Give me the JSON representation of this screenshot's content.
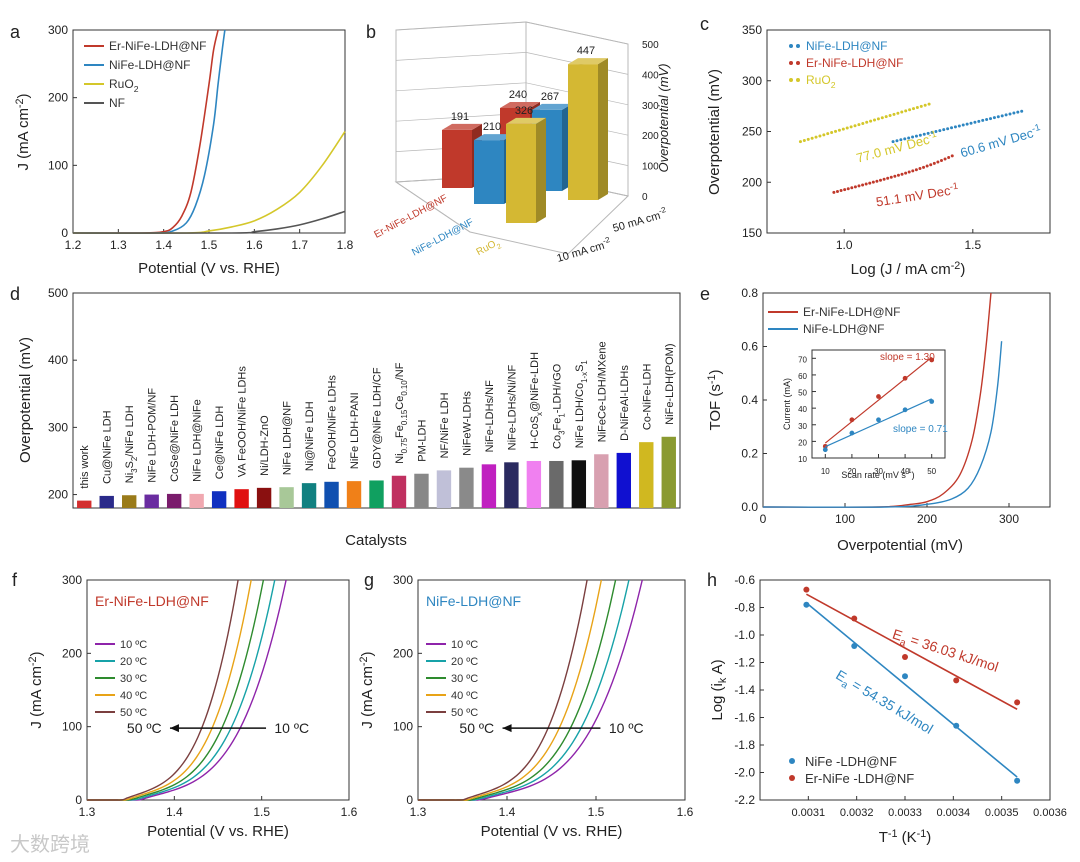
{
  "watermark": "大数跨境",
  "chart_data": [
    {
      "panel": "a",
      "type": "line",
      "xlabel": "Potential (V vs. RHE)",
      "ylabel": "J (mA cm-2)",
      "xlim": [
        1.2,
        1.8
      ],
      "ylim": [
        0,
        300
      ],
      "xticks": [
        1.2,
        1.3,
        1.4,
        1.5,
        1.6,
        1.7,
        1.8
      ],
      "yticks": [
        0,
        100,
        200,
        300
      ],
      "legend": "top-left",
      "series": [
        {
          "name": "Er-NiFe-LDH@NF",
          "color": "#c0392b",
          "x": [
            1.2,
            1.35,
            1.4,
            1.42,
            1.44,
            1.46,
            1.48,
            1.5,
            1.51,
            1.52
          ],
          "y": [
            0,
            0,
            2,
            8,
            25,
            60,
            130,
            220,
            270,
            300
          ]
        },
        {
          "name": "NiFe-LDH@NF",
          "color": "#2e86c1",
          "x": [
            1.2,
            1.38,
            1.42,
            1.45,
            1.47,
            1.49,
            1.51,
            1.52,
            1.53,
            1.535
          ],
          "y": [
            0,
            0,
            3,
            15,
            40,
            85,
            160,
            220,
            275,
            300
          ]
        },
        {
          "name": "RuO2",
          "color": "#d4c72a",
          "x": [
            1.2,
            1.45,
            1.5,
            1.55,
            1.6,
            1.65,
            1.7,
            1.75,
            1.8
          ],
          "y": [
            0,
            0,
            3,
            9,
            18,
            35,
            60,
            100,
            150
          ]
        },
        {
          "name": "NF",
          "color": "#555555",
          "x": [
            1.2,
            1.55,
            1.6,
            1.65,
            1.7,
            1.75,
            1.8
          ],
          "y": [
            0,
            0,
            2,
            6,
            12,
            21,
            32
          ]
        }
      ]
    },
    {
      "panel": "b",
      "type": "bar",
      "zlabel": "Overpotential (mV)",
      "zticks": [
        0,
        100,
        200,
        300,
        400,
        500
      ],
      "categories": [
        "Er-NiFe-LDH@NF",
        "NiFe-LDH@NF",
        "RuO2"
      ],
      "rows": [
        "10 mA cm-2",
        "50 mA cm-2"
      ],
      "series": [
        {
          "name": "10 mA cm-2",
          "values": [
            191,
            210,
            326
          ]
        },
        {
          "name": "50 mA cm-2",
          "values": [
            240,
            267,
            447
          ]
        }
      ],
      "colors": [
        "#c0392b",
        "#2e86c1",
        "#d4b833"
      ]
    },
    {
      "panel": "c",
      "type": "scatter",
      "xlabel": "Log (J / mA cm-2)",
      "ylabel": "Overpotential (mV)",
      "xlim": [
        0.7,
        1.8
      ],
      "ylim": [
        150,
        350
      ],
      "xticks": [
        1.0,
        1.5
      ],
      "yticks": [
        150,
        200,
        250,
        300,
        350
      ],
      "legend": "top-left",
      "series": [
        {
          "name": "NiFe-LDH@NF",
          "color": "#2e86c1",
          "x": [
            1.19,
            1.69
          ],
          "y": [
            240,
            270
          ],
          "slope_label": "60.6 mV Dec-1"
        },
        {
          "name": "Er-NiFe-LDH@NF",
          "color": "#c0392b",
          "x": [
            0.96,
            1.42
          ],
          "y": [
            190,
            220
          ],
          "slope_label": "51.1 mV Dec-1"
        },
        {
          "name": "RuO2",
          "color": "#d4c72a",
          "x": [
            0.83,
            1.33
          ],
          "y": [
            240,
            277
          ],
          "slope_label": "77.0 mV Dec-1"
        }
      ]
    },
    {
      "panel": "d",
      "type": "bar",
      "xlabel": "Catalysts",
      "ylabel": "Overpotential (mV)",
      "ylim": [
        180,
        500
      ],
      "yticks": [
        200,
        300,
        400,
        500
      ],
      "categories": [
        "this work",
        "Cu@NiFe LDH",
        "Ni3S2/NiFe LDH",
        "NiFe LDH-POM/NF",
        "CoSe@NiFe LDH",
        "NiFe LDH@NiFe",
        "Ce@NiFe LDH",
        "VA FeOOH/NiFe LDHs",
        "Ni/LDH-ZnO",
        "NiFe LDH@NF",
        "Ni@NiFe LDH",
        "FeOOH/NiFe LDHs",
        "NiFe LDH-PANI",
        "GDY@NiFe LDH/CF",
        "Ni0.75Fe0.15Ce0.10/NF",
        "PM-LDH",
        "NF/NiFe LDH",
        "NiFeW-LDHs",
        "NiFe-LDHs/NF",
        "NiFe-LDHs/Ni/NF",
        "H-CoSx@NiFe-LDH",
        "Co3Fe1-LDH/rGO",
        "NiFe LDH/Co1-xS1",
        "NiFeCe-LDH/MXene",
        "D-NiFeAl-LDHs",
        "Co-NiFe-LDH",
        "NiFe-LDH(POM)"
      ],
      "values": [
        191,
        198,
        199,
        200,
        201,
        201,
        205,
        208,
        210,
        211,
        217,
        219,
        220,
        221,
        228,
        231,
        236,
        240,
        245,
        248,
        250,
        250,
        251,
        260,
        262,
        278,
        286
      ],
      "colors": [
        "#d32f2f",
        "#2a2a8a",
        "#9a7b1a",
        "#6a2ca0",
        "#7a1c6c",
        "#f0a8b0",
        "#1030c0",
        "#e01010",
        "#8a1010",
        "#a8c898",
        "#118080",
        "#1050b0",
        "#f08018",
        "#10a060",
        "#c03060",
        "#888888",
        "#c0c0d8",
        "#8a8a8a",
        "#c020c0",
        "#2a2a60",
        "#f080f0",
        "#6a6a6a",
        "#101010",
        "#d8a0b0",
        "#1010d0",
        "#d0b820",
        "#8a9a30"
      ]
    },
    {
      "panel": "e",
      "type": "line",
      "xlabel": "Overpotential (mV)",
      "ylabel": "TOF (s-1)",
      "xlim": [
        0,
        350
      ],
      "ylim": [
        0,
        0.8
      ],
      "xticks": [
        0,
        100,
        200,
        300
      ],
      "yticks": [
        0.0,
        0.2,
        0.4,
        0.6,
        0.8
      ],
      "legend": "top-left",
      "series": [
        {
          "name": "Er-NiFe-LDH@NF",
          "color": "#c0392b",
          "x": [
            0,
            140,
            180,
            200,
            220,
            240,
            255,
            265,
            272,
            278
          ],
          "y": [
            0,
            0,
            0.01,
            0.02,
            0.05,
            0.12,
            0.25,
            0.42,
            0.6,
            0.8
          ]
        },
        {
          "name": "NiFe-LDH@NF",
          "color": "#2e86c1",
          "x": [
            0,
            150,
            200,
            230,
            250,
            265,
            278,
            286,
            291
          ],
          "y": [
            0,
            0,
            0.01,
            0.03,
            0.07,
            0.15,
            0.28,
            0.45,
            0.62
          ]
        }
      ],
      "inset": {
        "xlabel": "Scan rate (mV s-1)",
        "ylabel": "Current (mA)",
        "xlim": [
          5,
          55
        ],
        "ylim": [
          10,
          75
        ],
        "xticks": [
          10,
          20,
          30,
          40,
          50
        ],
        "yticks": [
          10,
          20,
          30,
          40,
          50,
          60,
          70
        ],
        "series": [
          {
            "name": "Er-NiFe-LDH@NF",
            "color": "#c0392b",
            "slope_label": "slope = 1.30",
            "x": [
              10,
              20,
              30,
              40,
              50
            ],
            "y": [
              17,
              33,
              47,
              58,
              69
            ]
          },
          {
            "name": "NiFe-LDH@NF",
            "color": "#2e86c1",
            "slope_label": "slope = 0.71",
            "x": [
              10,
              20,
              30,
              40,
              50
            ],
            "y": [
              15,
              25,
              33,
              39,
              44
            ]
          }
        ]
      }
    },
    {
      "panel": "f",
      "type": "line",
      "title": "Er-NiFe-LDH@NF",
      "xlabel": "Potential (V vs. RHE)",
      "ylabel": "J (mA cm-2)",
      "xlim": [
        1.3,
        1.6
      ],
      "ylim": [
        0,
        300
      ],
      "xticks": [
        1.3,
        1.4,
        1.5,
        1.6
      ],
      "yticks": [
        0,
        100,
        200,
        300
      ],
      "arrow_from": "10 ºC",
      "arrow_to": "50 ºC",
      "series": [
        {
          "name": "10 ºC",
          "color": "#8e24aa",
          "onset": 1.36,
          "v300": 1.528
        },
        {
          "name": "20 ºC",
          "color": "#17a2a8",
          "onset": 1.355,
          "v300": 1.515
        },
        {
          "name": "30 ºC",
          "color": "#2e8b2e",
          "onset": 1.35,
          "v300": 1.502
        },
        {
          "name": "40 ºC",
          "color": "#e8a317",
          "onset": 1.345,
          "v300": 1.488
        },
        {
          "name": "50 ºC",
          "color": "#7b3f3f",
          "onset": 1.34,
          "v300": 1.473
        }
      ]
    },
    {
      "panel": "g",
      "type": "line",
      "title": "NiFe-LDH@NF",
      "xlabel": "Potential (V vs. RHE)",
      "ylabel": "J (mA cm-2)",
      "xlim": [
        1.3,
        1.6
      ],
      "ylim": [
        0,
        300
      ],
      "xticks": [
        1.3,
        1.4,
        1.5,
        1.6
      ],
      "yticks": [
        0,
        100,
        200,
        300
      ],
      "arrow_from": "10 ºC",
      "arrow_to": "50 ºC",
      "series": [
        {
          "name": "10 ºC",
          "color": "#8e24aa",
          "onset": 1.37,
          "v300": 1.552
        },
        {
          "name": "20 ºC",
          "color": "#17a2a8",
          "onset": 1.365,
          "v300": 1.537
        },
        {
          "name": "30 ºC",
          "color": "#2e8b2e",
          "onset": 1.36,
          "v300": 1.522
        },
        {
          "name": "40 ºC",
          "color": "#e8a317",
          "onset": 1.355,
          "v300": 1.506
        },
        {
          "name": "50 ºC",
          "color": "#7b3f3f",
          "onset": 1.35,
          "v300": 1.49
        }
      ]
    },
    {
      "panel": "h",
      "type": "scatter",
      "xlabel": "T-1 (K-1)",
      "ylabel": "Log (ik A)",
      "xlim": [
        0.003,
        0.0036
      ],
      "ylim": [
        -2.2,
        -0.6
      ],
      "xticks": [
        0.0031,
        0.0032,
        0.0033,
        0.0034,
        0.0035,
        0.0036
      ],
      "yticks": [
        -0.6,
        -0.8,
        -1.0,
        -1.2,
        -1.4,
        -1.6,
        -1.8,
        -2.0,
        -2.2
      ],
      "legend": "bottom-left",
      "series": [
        {
          "name": "NiFe -LDH@NF",
          "color": "#2e86c1",
          "fit_label": "Ea = 54.35 kJ/mol",
          "x": [
            0.003096,
            0.003195,
            0.0033,
            0.003406,
            0.003532
          ],
          "y": [
            -0.78,
            -1.08,
            -1.3,
            -1.66,
            -2.06
          ]
        },
        {
          "name": "Er-NiFe -LDH@NF",
          "color": "#c0392b",
          "fit_label": "Ea = 36.03 kJ/mol",
          "x": [
            0.003096,
            0.003195,
            0.0033,
            0.003406,
            0.003532
          ],
          "y": [
            -0.67,
            -0.88,
            -1.16,
            -1.33,
            -1.49
          ]
        }
      ]
    }
  ]
}
